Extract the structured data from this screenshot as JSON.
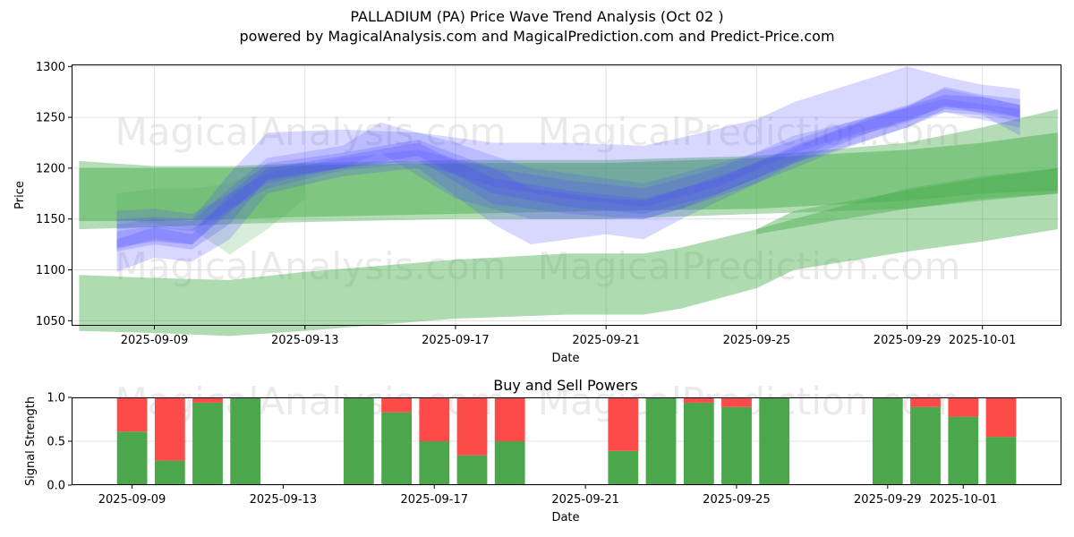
{
  "header": {
    "title": "PALLADIUM (PA) Price Wave Trend Analysis (Oct 02 )",
    "subtitle": "powered by MagicalAnalysis.com and MagicalPrediction.com and Predict-Price.com"
  },
  "watermarks": [
    "MagicalAnalysis.com",
    "MagicalPrediction.com"
  ],
  "colors": {
    "green_band": "#4caf50",
    "blue_band": "#4a4aff",
    "buy": "#4ca64c",
    "sell": "#ff4a4a",
    "grid": "#e0e0e0",
    "watermark": "#d8d8d8"
  },
  "chart_data": [
    {
      "type": "area",
      "title": "",
      "xlabel": "Date",
      "ylabel": "Price",
      "xlim": [
        "2025-09-06.8",
        "2025-10-03.1"
      ],
      "ylim": [
        1045,
        1302
      ],
      "yticks": [
        1050,
        1100,
        1150,
        1200,
        1250,
        1300
      ],
      "xticks": [
        "2025-09-09",
        "2025-09-13",
        "2025-09-17",
        "2025-09-21",
        "2025-09-25",
        "2025-09-29",
        "2025-10-01"
      ],
      "grid": true,
      "series": [
        {
          "name": "green-band-lower-wide",
          "color": "green",
          "opacity": 0.45,
          "x": [
            "2025-09-07",
            "2025-09-09",
            "2025-09-11",
            "2025-09-13",
            "2025-09-17",
            "2025-09-20",
            "2025-09-22",
            "2025-09-23",
            "2025-09-25",
            "2025-09-26",
            "2025-09-29",
            "2025-10-01",
            "2025-10-03"
          ],
          "upper": [
            1095,
            1092,
            1090,
            1098,
            1110,
            1116,
            1116,
            1122,
            1140,
            1158,
            1178,
            1190,
            1200
          ],
          "lower": [
            1040,
            1038,
            1035,
            1040,
            1052,
            1056,
            1056,
            1062,
            1082,
            1100,
            1118,
            1128,
            1140
          ]
        },
        {
          "name": "green-band-upper-wide",
          "color": "green",
          "opacity": 0.42,
          "x": [
            "2025-09-07",
            "2025-09-09",
            "2025-09-11",
            "2025-09-13",
            "2025-09-17",
            "2025-09-21",
            "2025-09-25",
            "2025-09-29",
            "2025-10-01",
            "2025-10-03"
          ],
          "upper": [
            1207,
            1202,
            1202,
            1205,
            1208,
            1208,
            1212,
            1225,
            1240,
            1258
          ],
          "lower": [
            1140,
            1142,
            1145,
            1147,
            1150,
            1150,
            1155,
            1160,
            1168,
            1175
          ]
        },
        {
          "name": "green-band-mid",
          "color": "green",
          "opacity": 0.5,
          "x": [
            "2025-09-07",
            "2025-09-09",
            "2025-09-11",
            "2025-09-13",
            "2025-09-17",
            "2025-09-21",
            "2025-09-25",
            "2025-09-29",
            "2025-10-01",
            "2025-10-03"
          ],
          "upper": [
            1200,
            1200,
            1200,
            1203,
            1205,
            1205,
            1210,
            1218,
            1225,
            1235
          ],
          "lower": [
            1148,
            1148,
            1150,
            1152,
            1155,
            1158,
            1160,
            1168,
            1175,
            1178
          ]
        },
        {
          "name": "green-band-right",
          "color": "green",
          "opacity": 0.45,
          "x": [
            "2025-09-25",
            "2025-09-27",
            "2025-09-29",
            "2025-10-01",
            "2025-10-03"
          ],
          "upper": [
            1140,
            1160,
            1180,
            1192,
            1200
          ],
          "lower": [
            1135,
            1148,
            1160,
            1170,
            1175
          ]
        },
        {
          "name": "green-band-early",
          "color": "green",
          "opacity": 0.22,
          "x": [
            "2025-09-08",
            "2025-09-09",
            "2025-09-10",
            "2025-09-11",
            "2025-09-12",
            "2025-09-13"
          ],
          "upper": [
            1175,
            1180,
            1180,
            1185,
            1200,
            1205
          ],
          "lower": [
            1150,
            1145,
            1140,
            1115,
            1140,
            1170
          ]
        },
        {
          "name": "blue-band-1",
          "color": "blue",
          "opacity": 0.22,
          "x": [
            "2025-09-08",
            "2025-09-09",
            "2025-09-10",
            "2025-09-11",
            "2025-09-12",
            "2025-09-14",
            "2025-09-16",
            "2025-09-18",
            "2025-09-20",
            "2025-09-22",
            "2025-09-23",
            "2025-09-25",
            "2025-09-26",
            "2025-09-29",
            "2025-09-30",
            "2025-10-01",
            "2025-10-02"
          ],
          "upper": [
            1150,
            1152,
            1150,
            1195,
            1235,
            1238,
            1235,
            1225,
            1225,
            1222,
            1230,
            1248,
            1265,
            1300,
            1290,
            1282,
            1278
          ],
          "lower": [
            1118,
            1125,
            1120,
            1145,
            1190,
            1200,
            1208,
            1165,
            1155,
            1150,
            1160,
            1185,
            1205,
            1240,
            1258,
            1255,
            1250
          ]
        },
        {
          "name": "blue-band-2",
          "color": "blue",
          "opacity": 0.22,
          "x": [
            "2025-09-08",
            "2025-09-09",
            "2025-09-10",
            "2025-09-11",
            "2025-09-12",
            "2025-09-14",
            "2025-09-16",
            "2025-09-18",
            "2025-09-19",
            "2025-09-21",
            "2025-09-22",
            "2025-09-23",
            "2025-09-25",
            "2025-09-27",
            "2025-09-29",
            "2025-09-30",
            "2025-10-01",
            "2025-10-02"
          ],
          "upper": [
            1130,
            1142,
            1135,
            1175,
            1205,
            1215,
            1228,
            1200,
            1180,
            1170,
            1168,
            1180,
            1205,
            1235,
            1260,
            1280,
            1272,
            1268
          ],
          "lower": [
            1098,
            1112,
            1108,
            1130,
            1175,
            1192,
            1200,
            1145,
            1125,
            1135,
            1130,
            1150,
            1185,
            1215,
            1240,
            1255,
            1252,
            1232
          ]
        },
        {
          "name": "blue-band-3",
          "color": "blue",
          "opacity": 0.2,
          "x": [
            "2025-09-08",
            "2025-09-09",
            "2025-09-10",
            "2025-09-11",
            "2025-09-12",
            "2025-09-14",
            "2025-09-15",
            "2025-09-17",
            "2025-09-19",
            "2025-09-22",
            "2025-09-23",
            "2025-09-25",
            "2025-09-27",
            "2025-09-29",
            "2025-09-30",
            "2025-10-02"
          ],
          "upper": [
            1145,
            1150,
            1148,
            1180,
            1210,
            1222,
            1245,
            1225,
            1200,
            1185,
            1195,
            1215,
            1240,
            1262,
            1278,
            1262
          ],
          "lower": [
            1120,
            1130,
            1125,
            1160,
            1185,
            1200,
            1215,
            1170,
            1150,
            1150,
            1160,
            1190,
            1225,
            1245,
            1262,
            1245
          ]
        },
        {
          "name": "blue-band-4",
          "color": "blue",
          "opacity": 0.25,
          "x": [
            "2025-09-08",
            "2025-09-09",
            "2025-09-10",
            "2025-09-12",
            "2025-09-14",
            "2025-09-16",
            "2025-09-18",
            "2025-09-20",
            "2025-09-22",
            "2025-09-24",
            "2025-09-26",
            "2025-09-28",
            "2025-09-30",
            "2025-10-01",
            "2025-10-02"
          ],
          "upper": [
            1138,
            1143,
            1140,
            1200,
            1212,
            1225,
            1190,
            1178,
            1170,
            1190,
            1222,
            1250,
            1272,
            1270,
            1262
          ],
          "lower": [
            1122,
            1128,
            1125,
            1188,
            1200,
            1212,
            1175,
            1162,
            1155,
            1175,
            1205,
            1235,
            1260,
            1258,
            1250
          ]
        },
        {
          "name": "blue-band-5",
          "color": "blue",
          "opacity": 0.2,
          "x": [
            "2025-09-08",
            "2025-09-09",
            "2025-09-10",
            "2025-09-12",
            "2025-09-14",
            "2025-09-16",
            "2025-09-18",
            "2025-09-20",
            "2025-09-22",
            "2025-09-24",
            "2025-09-26",
            "2025-09-28",
            "2025-09-30",
            "2025-10-02"
          ],
          "upper": [
            1158,
            1160,
            1155,
            1195,
            1210,
            1218,
            1200,
            1188,
            1180,
            1200,
            1232,
            1250,
            1268,
            1258
          ],
          "lower": [
            1140,
            1142,
            1138,
            1180,
            1198,
            1205,
            1182,
            1170,
            1162,
            1182,
            1215,
            1238,
            1255,
            1240
          ]
        }
      ]
    },
    {
      "type": "bar",
      "title": "Buy and Sell Powers",
      "xlabel": "Date",
      "ylabel": "Signal Strength",
      "xlim": [
        "2025-09-07.4",
        "2025-10-03.6"
      ],
      "ylim": [
        0.0,
        1.0
      ],
      "yticks": [
        "0.0",
        "0.5",
        "1.0"
      ],
      "xticks": [
        "2025-09-09",
        "2025-09-13",
        "2025-09-17",
        "2025-09-21",
        "2025-09-25",
        "2025-09-29",
        "2025-10-01"
      ],
      "grid": true,
      "categories": [
        "2025-09-09",
        "2025-09-10",
        "2025-09-11",
        "2025-09-12",
        "2025-09-15",
        "2025-09-16",
        "2025-09-17",
        "2025-09-18",
        "2025-09-19",
        "2025-09-22",
        "2025-09-23",
        "2025-09-24",
        "2025-09-25",
        "2025-09-26",
        "2025-09-29",
        "2025-09-30",
        "2025-10-01",
        "2025-10-02"
      ],
      "series": [
        {
          "name": "Buy",
          "color": "#4ca64c",
          "values": [
            0.61,
            0.28,
            0.94,
            1.0,
            1.0,
            0.83,
            0.5,
            0.34,
            0.5,
            0.39,
            1.0,
            0.94,
            0.89,
            1.0,
            1.0,
            0.89,
            0.78,
            0.55
          ]
        },
        {
          "name": "Sell",
          "color": "#ff4a4a",
          "values": [
            0.39,
            0.72,
            0.06,
            0.0,
            0.0,
            0.17,
            0.5,
            0.66,
            0.5,
            0.61,
            0.0,
            0.06,
            0.11,
            0.0,
            0.0,
            0.11,
            0.22,
            0.45
          ]
        }
      ]
    }
  ]
}
